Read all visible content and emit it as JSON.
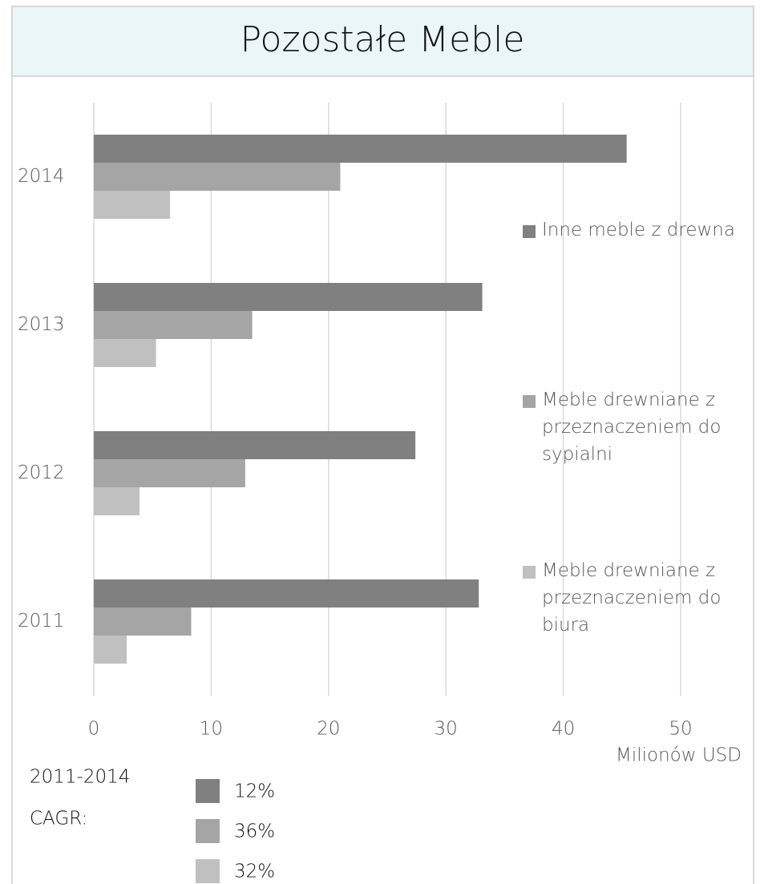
{
  "chart_data": {
    "type": "bar",
    "orientation": "horizontal",
    "title": "Pozostałe Meble",
    "categories": [
      "2011",
      "2012",
      "2013",
      "2014"
    ],
    "series": [
      {
        "name": "Inne meble z drewna",
        "color": "#808080",
        "values": [
          32.8,
          27.4,
          33.1,
          45.4
        ]
      },
      {
        "name": "Meble drewniane z przeznaczeniem do sypialni",
        "color": "#a5a5a5",
        "values": [
          8.3,
          12.9,
          13.5,
          21.0
        ]
      },
      {
        "name": "Meble drewniane z przeznaczeniem do biura",
        "color": "#c0c0c0",
        "values": [
          2.8,
          3.9,
          5.3,
          6.5
        ]
      }
    ],
    "xlim": [
      0,
      50
    ],
    "xticks": [
      0,
      10,
      20,
      30,
      40,
      50
    ],
    "grid": true,
    "xlabel": "Milionów USD",
    "legend": "right",
    "cagr": {
      "title": [
        "2011-2014",
        "CAGR:"
      ],
      "values": [
        12,
        36,
        32
      ],
      "value_labels": [
        "12%",
        "36%",
        "32%"
      ]
    }
  }
}
